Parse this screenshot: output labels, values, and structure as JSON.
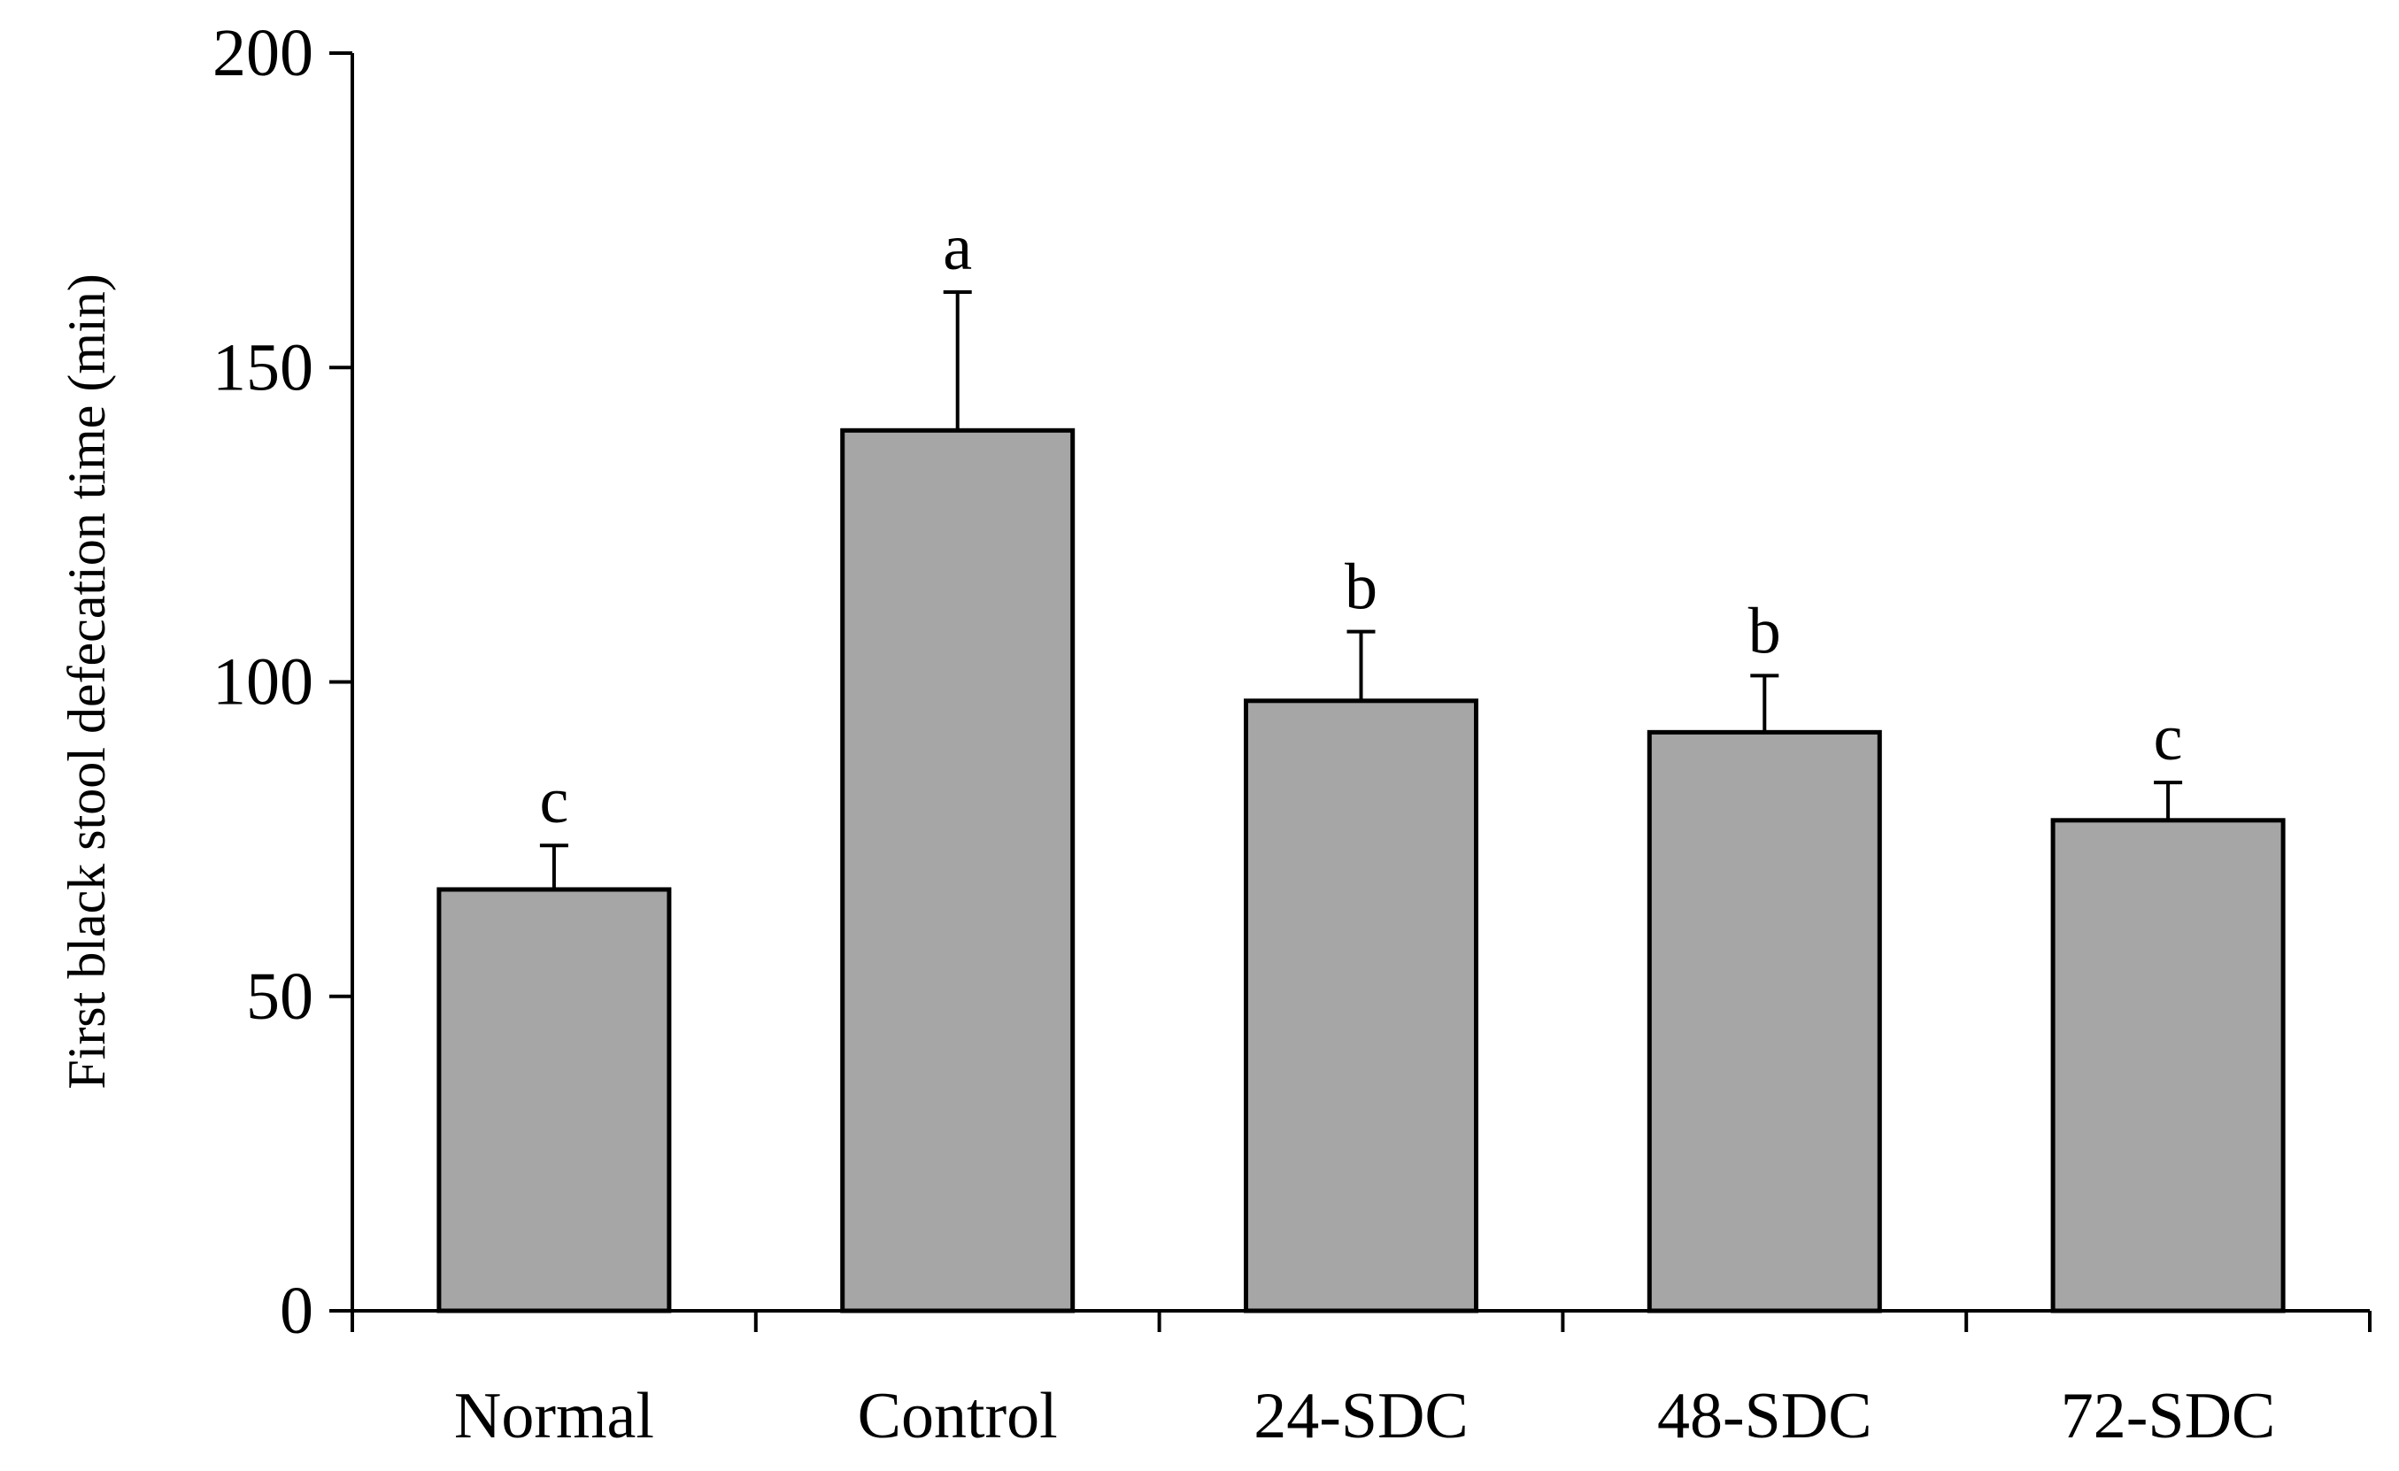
{
  "chart_data": {
    "type": "bar",
    "title": "",
    "xlabel": "",
    "ylabel": "First black stool defecation time (min)",
    "categories": [
      "Normal",
      "Control",
      "24-SDC",
      "48-SDC",
      "72-SDC"
    ],
    "values": [
      67,
      140,
      97,
      92,
      78
    ],
    "errors": [
      7,
      22,
      11,
      9,
      6
    ],
    "significance_letters": [
      "c",
      "a",
      "b",
      "b",
      "c"
    ],
    "ylim": [
      0,
      200
    ],
    "yticks": [
      0,
      50,
      100,
      150,
      200
    ],
    "grid": false,
    "legend": "none"
  },
  "colors": {
    "bar_fill": "#a6a6a6",
    "bar_stroke": "#000000",
    "axis": "#000000",
    "text": "#000000",
    "background": "#ffffff"
  }
}
